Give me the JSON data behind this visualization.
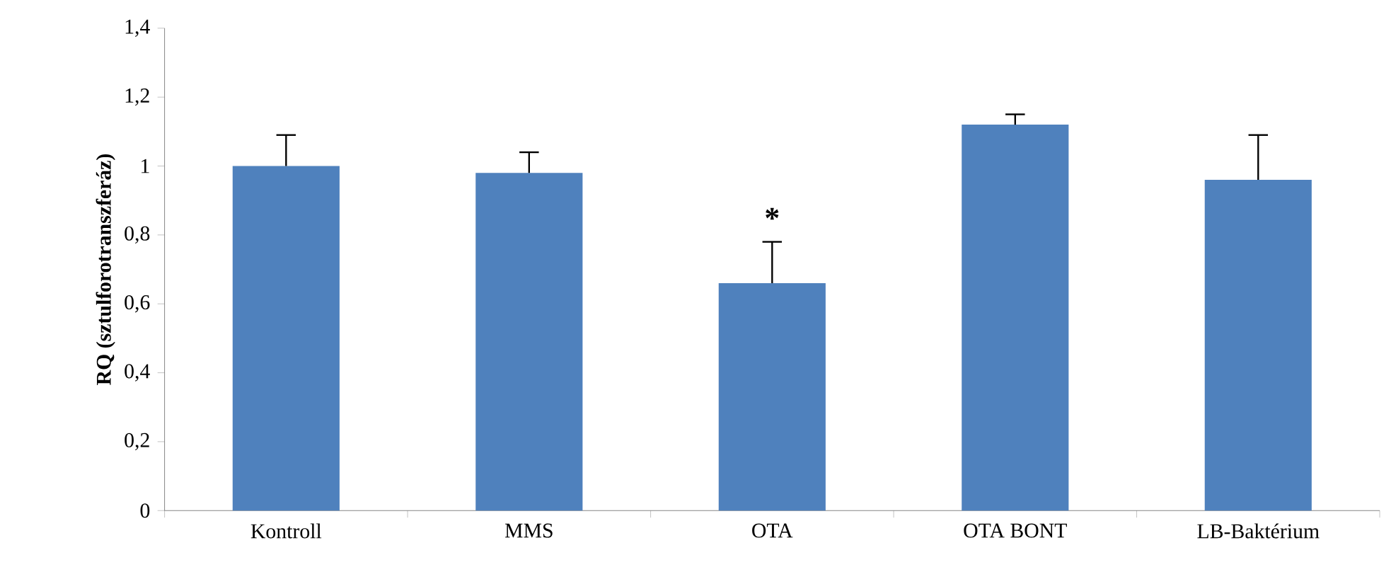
{
  "chart_data": {
    "type": "bar",
    "ylabel": "RQ (sztulforotranszferáz)",
    "categories": [
      "Kontroll",
      "MMS",
      "OTA",
      "OTA BONT",
      "LB-Baktérium"
    ],
    "values": [
      1.0,
      0.98,
      0.66,
      1.12,
      0.96
    ],
    "errors": [
      [
        1.0,
        1.09
      ],
      [
        0.98,
        1.04
      ],
      [
        0.66,
        0.78
      ],
      [
        1.12,
        1.15
      ],
      [
        0.96,
        1.09
      ]
    ],
    "color": "#4f81bd",
    "ylim": [
      0,
      1.4
    ],
    "yticks": [
      0,
      {
        "value": 0.2,
        "label": "0,2"
      },
      {
        "value": 0.4,
        "label": "0,4"
      },
      {
        "value": 0.6,
        "label": "0,6"
      },
      {
        "value": 0.8,
        "label": "0,8"
      },
      1,
      {
        "value": 1.2,
        "label": "1,2"
      },
      {
        "value": 1.4,
        "label": "1,4"
      }
    ],
    "annotations": [
      "*"
    ]
  }
}
